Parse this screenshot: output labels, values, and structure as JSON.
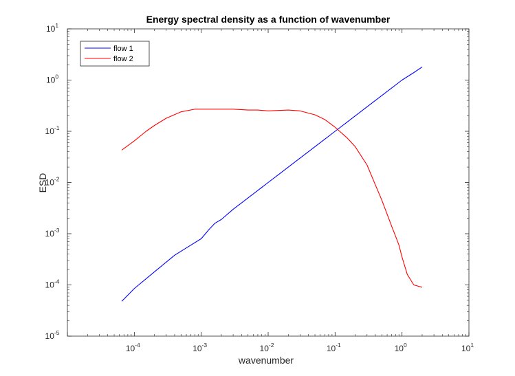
{
  "chart_data": {
    "type": "line",
    "title": "Energy spectral density as a function of wavenumber",
    "xlabel": "wavenumber",
    "ylabel": "ESD",
    "xscale": "log",
    "yscale": "log",
    "xlim": [
      1e-05,
      10
    ],
    "ylim": [
      1e-05,
      10
    ],
    "x_ticks": [
      {
        "base": "10",
        "exp": "-4",
        "value": 0.0001
      },
      {
        "base": "10",
        "exp": "-3",
        "value": 0.001
      },
      {
        "base": "10",
        "exp": "-2",
        "value": 0.01
      },
      {
        "base": "10",
        "exp": "-1",
        "value": 0.1
      },
      {
        "base": "10",
        "exp": "0",
        "value": 1
      },
      {
        "base": "10",
        "exp": "1",
        "value": 10
      }
    ],
    "y_ticks": [
      {
        "base": "10",
        "exp": "-5",
        "value": 1e-05
      },
      {
        "base": "10",
        "exp": "-4",
        "value": 0.0001
      },
      {
        "base": "10",
        "exp": "-3",
        "value": 0.001
      },
      {
        "base": "10",
        "exp": "-2",
        "value": 0.01
      },
      {
        "base": "10",
        "exp": "-1",
        "value": 0.1
      },
      {
        "base": "10",
        "exp": "0",
        "value": 1
      },
      {
        "base": "10",
        "exp": "1",
        "value": 10
      }
    ],
    "grid": false,
    "legend_position": "top-left",
    "series": [
      {
        "name": "flow 1",
        "color": "#0000ff",
        "x": [
          6.5e-05,
          0.0001,
          0.0002,
          0.0004,
          0.0007,
          0.001,
          0.0013,
          0.0016,
          0.002,
          0.003,
          0.004,
          0.005,
          0.007,
          0.01,
          0.015,
          0.02,
          0.03,
          0.05,
          0.07,
          0.1,
          0.15,
          0.2,
          0.3,
          0.5,
          0.7,
          1.0,
          1.5,
          2.0
        ],
        "y": [
          4.8e-05,
          8.5e-05,
          0.00018,
          0.00038,
          0.0006,
          0.0008,
          0.0012,
          0.0016,
          0.0019,
          0.003,
          0.004,
          0.005,
          0.007,
          0.01,
          0.015,
          0.02,
          0.03,
          0.05,
          0.07,
          0.1,
          0.15,
          0.2,
          0.3,
          0.5,
          0.7,
          1.0,
          1.4,
          1.8
        ]
      },
      {
        "name": "flow 2",
        "color": "#ff0000",
        "x": [
          6.5e-05,
          0.0001,
          0.00015,
          0.0002,
          0.0003,
          0.0005,
          0.0008,
          0.001,
          0.002,
          0.003,
          0.005,
          0.007,
          0.01,
          0.02,
          0.03,
          0.05,
          0.07,
          0.1,
          0.15,
          0.2,
          0.3,
          0.4,
          0.5,
          0.6,
          0.7,
          0.8,
          0.9,
          1.0,
          1.2,
          1.5,
          2.0
        ],
        "y": [
          0.043,
          0.065,
          0.1,
          0.13,
          0.18,
          0.24,
          0.27,
          0.27,
          0.27,
          0.27,
          0.26,
          0.26,
          0.25,
          0.26,
          0.25,
          0.21,
          0.17,
          0.12,
          0.075,
          0.05,
          0.022,
          0.009,
          0.0045,
          0.0024,
          0.0014,
          0.0009,
          0.0006,
          0.00035,
          0.00016,
          0.0001,
          9e-05
        ]
      }
    ]
  }
}
